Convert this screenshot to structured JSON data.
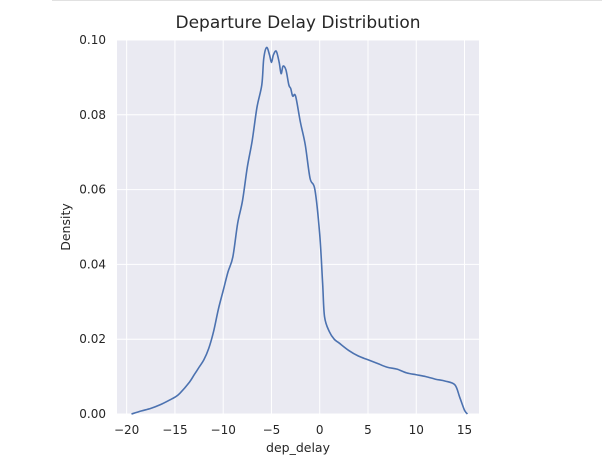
{
  "chart_data": {
    "type": "line",
    "title": "Departure Delay Distribution",
    "xlabel": "dep_delay",
    "ylabel": "Density",
    "xlim": [
      -21,
      16.5
    ],
    "ylim": [
      0,
      0.1
    ],
    "x_ticks": [
      -20,
      -15,
      -10,
      -5,
      0,
      5,
      10,
      15
    ],
    "x_tick_labels": [
      "−20",
      "−15",
      "−10",
      "−5",
      "0",
      "5",
      "10",
      "15"
    ],
    "y_ticks": [
      0,
      0.02,
      0.04,
      0.06,
      0.08,
      0.1
    ],
    "y_tick_labels": [
      "0.00",
      "0.02",
      "0.04",
      "0.06",
      "0.08",
      "0.10"
    ],
    "grid": true,
    "legend": "none",
    "colors": {
      "line": "#4c72b0",
      "plot_background": "#eaeaf2",
      "grid": "#ffffff",
      "text": "#262626"
    },
    "series": [
      {
        "x": [
          -19.5,
          -18.5,
          -17.5,
          -16.5,
          -15.5,
          -15.0,
          -14.5,
          -13.5,
          -13.0,
          -12.5,
          -12.0,
          -11.5,
          -11.0,
          -10.5,
          -10.0,
          -9.5,
          -9.0,
          -8.5,
          -8.0,
          -7.5,
          -7.0,
          -6.5,
          -6.0,
          -5.8,
          -5.5,
          -5.2,
          -5.0,
          -4.8,
          -4.5,
          -4.2,
          -4.0,
          -3.8,
          -3.5,
          -3.2,
          -3.0,
          -2.8,
          -2.5,
          -2.0,
          -1.5,
          -1.0,
          -0.5,
          0.0,
          0.3,
          0.5,
          1.0,
          1.5,
          2.0,
          3.0,
          4.0,
          5.0,
          6.0,
          7.0,
          8.0,
          9.0,
          10.0,
          11.0,
          12.0,
          13.0,
          14.0,
          14.5,
          15.0,
          15.3
        ],
        "y": [
          0.0,
          0.0008,
          0.0015,
          0.0025,
          0.0038,
          0.0045,
          0.0055,
          0.0085,
          0.0105,
          0.0125,
          0.0145,
          0.0175,
          0.022,
          0.028,
          0.033,
          0.038,
          0.042,
          0.051,
          0.057,
          0.066,
          0.073,
          0.082,
          0.088,
          0.095,
          0.098,
          0.096,
          0.094,
          0.096,
          0.097,
          0.094,
          0.091,
          0.093,
          0.092,
          0.088,
          0.087,
          0.085,
          0.085,
          0.078,
          0.072,
          0.063,
          0.06,
          0.048,
          0.035,
          0.026,
          0.022,
          0.02,
          0.019,
          0.017,
          0.0155,
          0.0145,
          0.0135,
          0.0125,
          0.012,
          0.011,
          0.0105,
          0.01,
          0.0093,
          0.0088,
          0.0078,
          0.0045,
          0.001,
          0.0
        ]
      }
    ]
  }
}
